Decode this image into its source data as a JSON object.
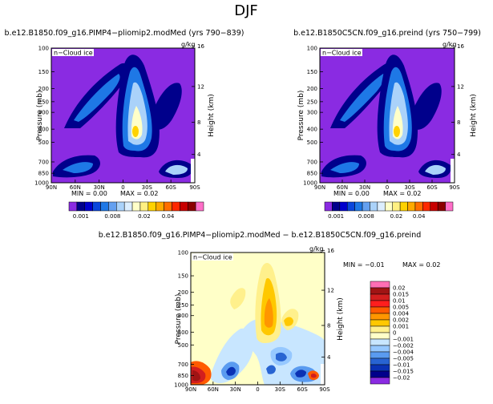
{
  "season": "DJF",
  "panels": [
    {
      "title": "b.e12.B1850.f09_g16.PIMP4−pliomip2.modMed (yrs 790−839)",
      "variable": "n−Cloud ice",
      "units": "g/kg",
      "min_text": "MIN =    0.00",
      "max_text": "MAX =    0.02"
    },
    {
      "title": "b.e12.B1850C5CN.f09_g16.preind (yrs 750−799)",
      "variable": "n−Cloud ice",
      "units": "g/kg",
      "min_text": "MIN =    0.00",
      "max_text": "MAX =    0.02"
    },
    {
      "title": "b.e12.B1850.f09_g16.PIMP4−pliomip2.modMed − b.e12.B1850C5CN.f09_g16.preind",
      "variable": "n−Cloud ice",
      "units": "g/kg",
      "min_text": "MIN =    −0.01",
      "max_text": "MAX =    0.02"
    }
  ],
  "colorbar_top": {
    "labels": [
      "0.001",
      "0.008",
      "0.02",
      "0.04"
    ],
    "colors": [
      "#8a2be2",
      "#00008b",
      "#0000cd",
      "#0a46dc",
      "#1e78e6",
      "#64a0f0",
      "#aad2fa",
      "#dceeff",
      "#ffffc8",
      "#fff082",
      "#ffd200",
      "#ffaa00",
      "#ff6e00",
      "#ff2800",
      "#c80000",
      "#8b0000",
      "#ff6ec8"
    ]
  },
  "colorbar_diff": {
    "labels": [
      "0.02",
      "0.015",
      "0.01",
      "0.005",
      "0.004",
      "0.002",
      "0.001",
      "0",
      "−0.001",
      "−0.002",
      "−0.004",
      "−0.005",
      "−0.01",
      "−0.015",
      "−0.02"
    ],
    "colors": [
      "#ff6eb4",
      "#a01414",
      "#d21e1e",
      "#ff1e1e",
      "#ff5a00",
      "#ff9600",
      "#ffc800",
      "#fff08c",
      "#ffffc8",
      "#c8e6ff",
      "#96c8ff",
      "#5a9bf0",
      "#2864d2",
      "#0a32b4",
      "#00008b",
      "#8a2be2"
    ]
  },
  "chart_data": [
    {
      "type": "contour",
      "title": "b.e12.B1850.f09_g16.PIMP4−pliomip2.modMed (yrs 790−839)",
      "x_ticks": [
        "90N",
        "60N",
        "30N",
        "0",
        "30S",
        "60S",
        "90S"
      ],
      "y_ticks": [
        "100",
        "150",
        "200",
        "250",
        "300",
        "400",
        "500",
        "700",
        "850",
        "1000"
      ],
      "y_ticks_pressure": [
        100,
        150,
        200,
        250,
        300,
        400,
        500,
        700,
        850,
        1000
      ],
      "height_ticks": [
        "16",
        "12",
        "8",
        "4"
      ],
      "height_ticks_km": [
        16,
        12,
        8,
        4
      ],
      "ylabel": "Pressure  (mb)",
      "ylabel_right": "Height  (km)",
      "xlim": [
        90,
        -90
      ],
      "ylim": [
        1000,
        100
      ],
      "min": 0.0,
      "max": 0.02
    },
    {
      "type": "contour",
      "title": "b.e12.B1850C5CN.f09_g16.preind (yrs 750−799)",
      "x_ticks": [
        "90N",
        "60N",
        "30N",
        "0",
        "30S",
        "60S",
        "90S"
      ],
      "y_ticks": [
        "100",
        "150",
        "200",
        "250",
        "300",
        "400",
        "500",
        "700",
        "850",
        "1000"
      ],
      "y_ticks_pressure": [
        100,
        150,
        200,
        250,
        300,
        400,
        500,
        700,
        850,
        1000
      ],
      "height_ticks": [
        "16",
        "12",
        "8",
        "4"
      ],
      "height_ticks_km": [
        16,
        12,
        8,
        4
      ],
      "ylabel": "Pressure  (mb)",
      "ylabel_right": "Height  (km)",
      "xlim": [
        90,
        -90
      ],
      "ylim": [
        1000,
        100
      ],
      "min": 0.0,
      "max": 0.02
    },
    {
      "type": "contour",
      "title": "b.e12.B1850.f09_g16.PIMP4−pliomip2.modMed − b.e12.B1850C5CN.f09_g16.preind",
      "x_ticks": [
        "90N",
        "60N",
        "30N",
        "0",
        "30S",
        "60S",
        "90S"
      ],
      "y_ticks": [
        "100",
        "150",
        "200",
        "250",
        "300",
        "400",
        "500",
        "700",
        "850",
        "1000"
      ],
      "y_ticks_pressure": [
        100,
        150,
        200,
        250,
        300,
        400,
        500,
        700,
        850,
        1000
      ],
      "height_ticks": [
        "16",
        "12",
        "8",
        "4"
      ],
      "height_ticks_km": [
        16,
        12,
        8,
        4
      ],
      "ylabel": "Pressure  (mb)",
      "ylabel_right": "Height  (km)",
      "xlim": [
        90,
        -90
      ],
      "ylim": [
        1000,
        100
      ],
      "min": -0.01,
      "max": 0.02
    }
  ]
}
